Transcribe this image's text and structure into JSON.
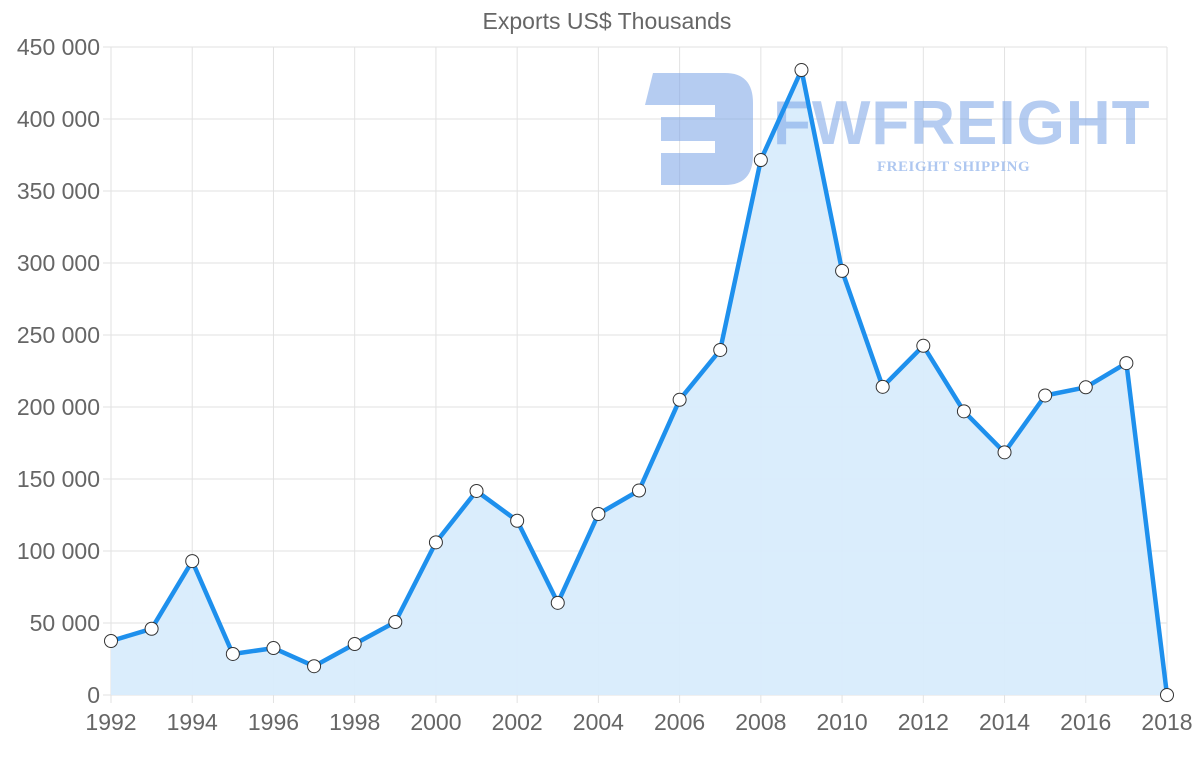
{
  "chart_data": {
    "type": "area",
    "title": "Exports US$ Thousands",
    "xlabel": "",
    "ylabel": "",
    "categories": [
      "1992",
      "1993",
      "1994",
      "1995",
      "1996",
      "1997",
      "1998",
      "1999",
      "2000",
      "2001",
      "2002",
      "2003",
      "2004",
      "2005",
      "2006",
      "2007",
      "2008",
      "2009",
      "2010",
      "2011",
      "2012",
      "2013",
      "2014",
      "2015",
      "2016",
      "2017",
      "2018"
    ],
    "x_tick_labels": [
      "1992",
      "1994",
      "1996",
      "1998",
      "2000",
      "2002",
      "2004",
      "2006",
      "2008",
      "2010",
      "2012",
      "2014",
      "2016",
      "2018"
    ],
    "y_tick_labels": [
      "0",
      "50 000",
      "100 000",
      "150 000",
      "200 000",
      "250 000",
      "300 000",
      "350 000",
      "400 000",
      "450 000"
    ],
    "ylim": [
      0,
      450000
    ],
    "grid": true,
    "legend": "none",
    "series": [
      {
        "name": "Exports US$ Thousands",
        "values": [
          37500,
          46000,
          93000,
          28500,
          32600,
          20000,
          35400,
          50700,
          106000,
          141700,
          121000,
          64000,
          125700,
          142000,
          205000,
          239600,
          371500,
          434000,
          294500,
          214000,
          242500,
          197000,
          168500,
          208000,
          213700,
          230500,
          0
        ]
      }
    ],
    "colors": {
      "line": "#1e90ed",
      "fill": "#d8ecfc",
      "point_fill": "#ffffff",
      "point_stroke": "#333333",
      "grid": "#e2e2e2",
      "text": "#666666"
    }
  },
  "watermark": {
    "brand": "FWFREIGHT",
    "tagline": "FREIGHT SHIPPING"
  }
}
